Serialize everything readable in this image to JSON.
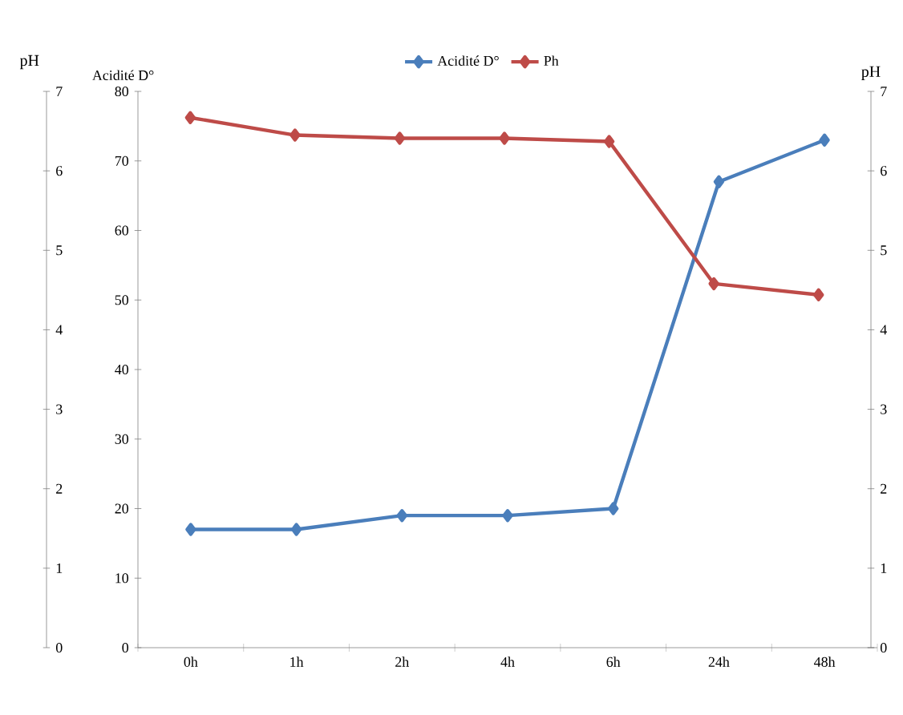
{
  "chart_data": {
    "type": "line",
    "categories": [
      "0h",
      "1h",
      "2h",
      "4h",
      "6h",
      "24h",
      "48h"
    ],
    "ylabel": "Acidité D°",
    "y2label": "pH",
    "y3label": "pH",
    "ylim": [
      0,
      80
    ],
    "yticks": [
      0,
      10,
      20,
      30,
      40,
      50,
      60,
      70,
      80
    ],
    "y2lim": [
      0,
      7
    ],
    "y2ticks": [
      0,
      1,
      2,
      3,
      4,
      5,
      6,
      7
    ],
    "y3lim": [
      0,
      7
    ],
    "y3ticks": [
      0,
      1,
      2,
      3,
      4,
      5,
      6,
      7
    ],
    "legend": "top",
    "marker": "diamond",
    "line_style": "solid",
    "series": [
      {
        "name": "Acidité D°",
        "color": "#4a7ebb",
        "values": [
          17,
          17,
          19,
          19,
          20,
          67,
          73
        ]
      },
      {
        "name": "Ph",
        "color": "#be4b48",
        "axis": "y2",
        "values": [
          6.67,
          6.45,
          6.41,
          6.41,
          6.37,
          4.58,
          4.44
        ]
      }
    ]
  }
}
